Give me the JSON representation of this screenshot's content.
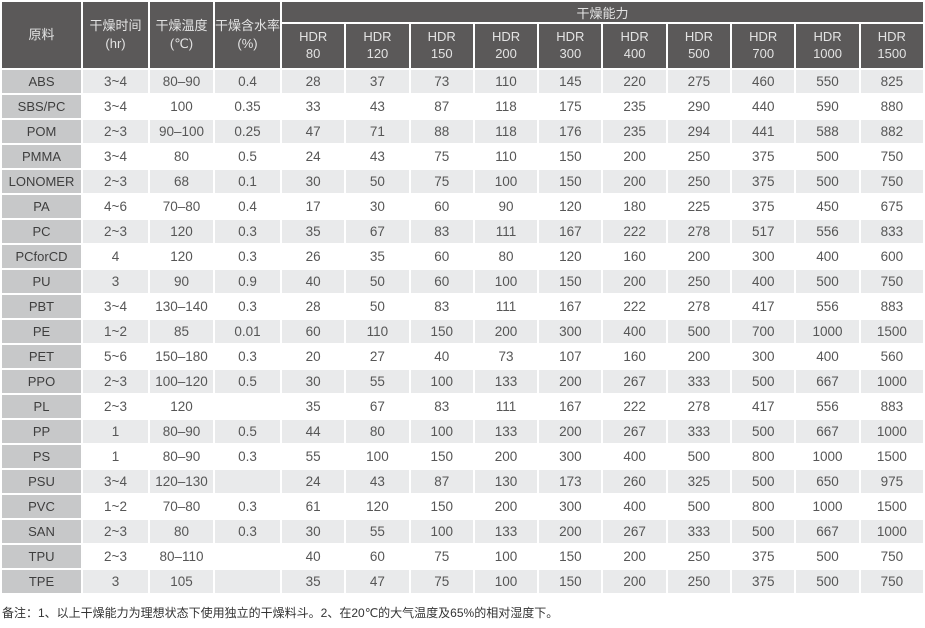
{
  "table": {
    "headers": {
      "material": "原料",
      "time": [
        "干燥时间",
        "(hr)"
      ],
      "temp": [
        "干燥温度",
        "(℃)"
      ],
      "moisture": [
        "干燥含水率",
        "(%)"
      ],
      "capacity_group": "干燥能力",
      "hdr_columns": [
        "HDR 80",
        "HDR 120",
        "HDR 150",
        "HDR 200",
        "HDR 300",
        "HDR 400",
        "HDR 500",
        "HDR 700",
        "HDR 1000",
        "HDR 1500"
      ]
    },
    "rows": [
      {
        "material": "ABS",
        "time": "3~4",
        "temp": "80–90",
        "moisture": "0.4",
        "values": [
          28,
          37,
          73,
          110,
          145,
          220,
          275,
          460,
          550,
          825
        ]
      },
      {
        "material": "SBS/PC",
        "time": "3~4",
        "temp": "100",
        "moisture": "0.35",
        "values": [
          33,
          43,
          87,
          118,
          175,
          235,
          290,
          440,
          590,
          880
        ]
      },
      {
        "material": "POM",
        "time": "2~3",
        "temp": "90–100",
        "moisture": "0.25",
        "values": [
          47,
          71,
          88,
          118,
          176,
          235,
          294,
          441,
          588,
          882
        ]
      },
      {
        "material": "PMMA",
        "time": "3~4",
        "temp": "80",
        "moisture": "0.5",
        "values": [
          24,
          43,
          75,
          110,
          150,
          200,
          250,
          375,
          500,
          750
        ]
      },
      {
        "material": "LONOMER",
        "time": "2~3",
        "temp": "68",
        "moisture": "0.1",
        "values": [
          30,
          50,
          75,
          100,
          150,
          200,
          250,
          375,
          500,
          750
        ]
      },
      {
        "material": "PA",
        "time": "4~6",
        "temp": "70–80",
        "moisture": "0.4",
        "values": [
          17,
          30,
          60,
          90,
          120,
          180,
          225,
          375,
          450,
          675
        ]
      },
      {
        "material": "PC",
        "time": "2~3",
        "temp": "120",
        "moisture": "0.3",
        "values": [
          35,
          67,
          83,
          111,
          167,
          222,
          278,
          517,
          556,
          833
        ]
      },
      {
        "material": "PCforCD",
        "time": "4",
        "temp": "120",
        "moisture": "0.3",
        "values": [
          26,
          35,
          60,
          80,
          120,
          160,
          200,
          300,
          400,
          600
        ]
      },
      {
        "material": "PU",
        "time": "3",
        "temp": "90",
        "moisture": "0.9",
        "values": [
          40,
          50,
          60,
          100,
          150,
          200,
          250,
          400,
          500,
          750
        ]
      },
      {
        "material": "PBT",
        "time": "3~4",
        "temp": "130–140",
        "moisture": "0.3",
        "values": [
          28,
          50,
          83,
          111,
          167,
          222,
          278,
          417,
          556,
          883
        ]
      },
      {
        "material": "PE",
        "time": "1~2",
        "temp": "85",
        "moisture": "0.01",
        "values": [
          60,
          110,
          150,
          200,
          300,
          400,
          500,
          700,
          1000,
          1500
        ]
      },
      {
        "material": "PET",
        "time": "5~6",
        "temp": "150–180",
        "moisture": "0.3",
        "values": [
          20,
          27,
          40,
          73,
          107,
          160,
          200,
          300,
          400,
          560
        ]
      },
      {
        "material": "PPO",
        "time": "2~3",
        "temp": "100–120",
        "moisture": "0.5",
        "values": [
          30,
          55,
          100,
          133,
          200,
          267,
          333,
          500,
          667,
          1000
        ]
      },
      {
        "material": "PL",
        "time": "2~3",
        "temp": "120",
        "moisture": "",
        "values": [
          35,
          67,
          83,
          111,
          167,
          222,
          278,
          417,
          556,
          883
        ]
      },
      {
        "material": "PP",
        "time": "1",
        "temp": "80–90",
        "moisture": "0.5",
        "values": [
          44,
          80,
          100,
          133,
          200,
          267,
          333,
          500,
          667,
          1000
        ]
      },
      {
        "material": "PS",
        "time": "1",
        "temp": "80–90",
        "moisture": "0.3",
        "values": [
          55,
          100,
          150,
          200,
          300,
          400,
          500,
          800,
          1000,
          1500
        ]
      },
      {
        "material": "PSU",
        "time": "3~4",
        "temp": "120–130",
        "moisture": "",
        "values": [
          24,
          43,
          87,
          130,
          173,
          260,
          325,
          500,
          650,
          975
        ]
      },
      {
        "material": "PVC",
        "time": "1~2",
        "temp": "70–80",
        "moisture": "0.3",
        "values": [
          61,
          120,
          150,
          200,
          300,
          400,
          500,
          800,
          1000,
          1500
        ]
      },
      {
        "material": "SAN",
        "time": "2~3",
        "temp": "80",
        "moisture": "0.3",
        "values": [
          30,
          55,
          100,
          133,
          200,
          267,
          333,
          500,
          667,
          1000
        ]
      },
      {
        "material": "TPU",
        "time": "2~3",
        "temp": "80–110",
        "moisture": "",
        "values": [
          40,
          60,
          75,
          100,
          150,
          200,
          250,
          375,
          500,
          750
        ]
      },
      {
        "material": "TPE",
        "time": "3",
        "temp": "105",
        "moisture": "",
        "values": [
          35,
          47,
          75,
          100,
          150,
          200,
          250,
          375,
          500,
          750
        ]
      }
    ]
  },
  "footer": {
    "note": "备注：1、以上干燥能力为理想状态下使用独立的干燥料斗。2、在20℃的大气温度及65%的相对湿度下。"
  },
  "colors": {
    "header_bg": "#5b5959",
    "row_label_bg": "#c7c8c9",
    "stripe_bg": "#e9eaeb",
    "white": "#ffffff"
  }
}
